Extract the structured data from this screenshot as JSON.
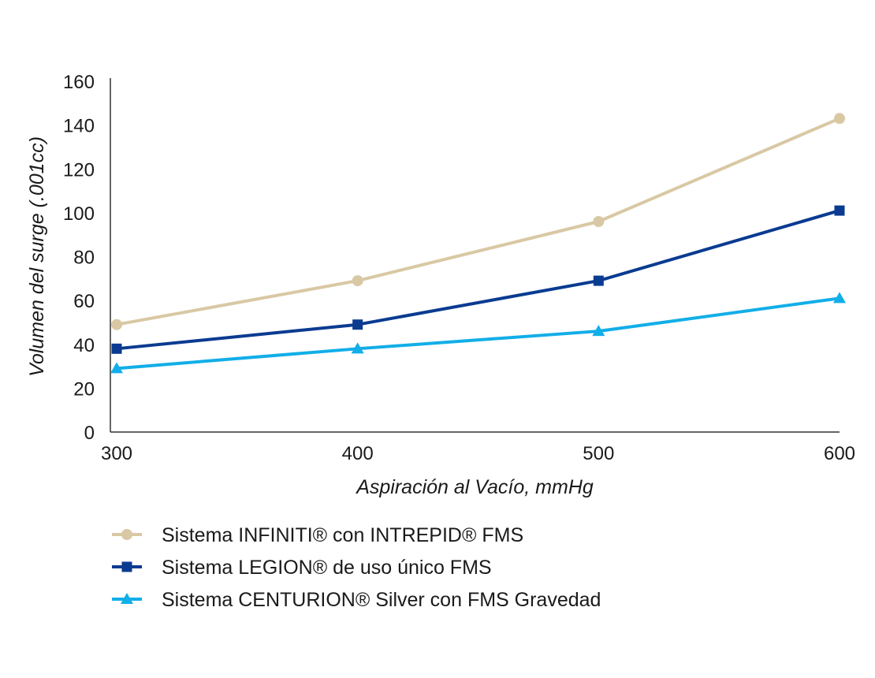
{
  "chart_data": {
    "type": "line",
    "x": [
      300,
      400,
      500,
      600
    ],
    "xlim": [
      300,
      600
    ],
    "ylim": [
      0,
      160
    ],
    "y_ticks": [
      0,
      20,
      40,
      60,
      80,
      100,
      120,
      140,
      160
    ],
    "x_ticks": [
      300,
      400,
      500,
      600
    ],
    "xlabel": "Aspiración al Vacío, mmHg",
    "ylabel": "Volumen del surge (.001cc)",
    "grid": false,
    "legend_position": "bottom",
    "series": [
      {
        "name": "Sistema INFINITI® con INTREPID® FMS",
        "values": [
          49,
          69,
          96,
          143
        ],
        "color": "#d9c8a4",
        "marker": "circle"
      },
      {
        "name": "Sistema LEGION® de uso único FMS",
        "values": [
          38,
          49,
          69,
          101
        ],
        "color": "#0a3b91",
        "marker": "square"
      },
      {
        "name": "Sistema CENTURION® Silver con FMS Gravedad",
        "values": [
          29,
          38,
          46,
          61
        ],
        "color": "#12aee8",
        "marker": "triangle"
      }
    ]
  }
}
